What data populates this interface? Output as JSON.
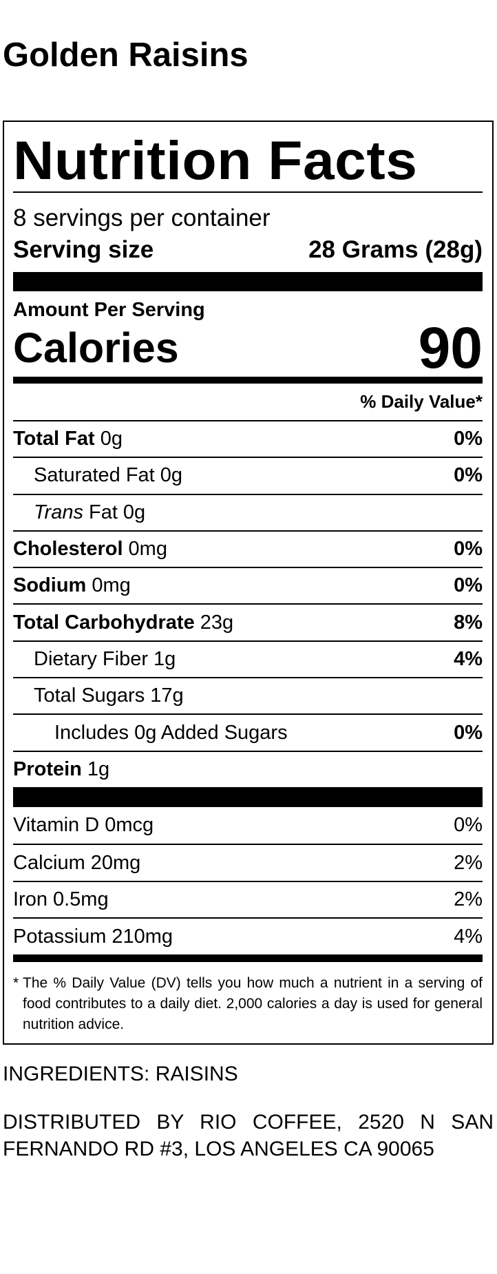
{
  "header": {
    "title": "Golden Raisins"
  },
  "label": {
    "title": "Nutrition Facts",
    "servings": "8 servings per container",
    "serving_size_label": "Serving size",
    "serving_size_value": "28 Grams (28g)",
    "amount_per_serving": "Amount Per Serving",
    "calories_label": "Calories",
    "calories_value": "90",
    "daily_value_header": "% Daily Value*",
    "nutrients": [
      {
        "name": "Total Fat",
        "amount": "0g",
        "dv": "0%",
        "bold": true,
        "indent": 0
      },
      {
        "name": "Saturated Fat",
        "amount": "0g",
        "dv": "0%",
        "bold": false,
        "indent": 1
      },
      {
        "name_italic": "Trans",
        "name": "Fat",
        "amount": "0g",
        "bold": false,
        "indent": 1
      },
      {
        "name": "Cholesterol",
        "amount": "0mg",
        "dv": "0%",
        "bold": true,
        "indent": 0
      },
      {
        "name": "Sodium",
        "amount": "0mg",
        "dv": "0%",
        "bold": true,
        "indent": 0
      },
      {
        "name": "Total Carbohydrate",
        "amount": "23g",
        "dv": "8%",
        "bold": true,
        "indent": 0
      },
      {
        "name": "Dietary Fiber",
        "amount": "1g",
        "dv": "4%",
        "bold": false,
        "indent": 1
      },
      {
        "name": "Total Sugars",
        "amount": "17g",
        "bold": false,
        "indent": 1
      },
      {
        "name": "Includes 0g Added Sugars",
        "dv": "0%",
        "bold": false,
        "indent": 2
      },
      {
        "name": "Protein",
        "amount": "1g",
        "bold": true,
        "indent": 0
      }
    ],
    "vitamins": [
      {
        "name": "Vitamin D",
        "amount": "0mcg",
        "dv": "0%"
      },
      {
        "name": "Calcium",
        "amount": "20mg",
        "dv": "2%"
      },
      {
        "name": "Iron",
        "amount": "0.5mg",
        "dv": "2%"
      },
      {
        "name": "Potassium",
        "amount": "210mg",
        "dv": "4%"
      }
    ],
    "footnote_marker": "*",
    "footnote": "The % Daily Value (DV) tells you how much a nutrient in a serving of food contributes to a daily diet. 2,000 calories a day is used for general nutrition advice."
  },
  "ingredients": "INGREDIENTS: RAISINS",
  "distributor": "DISTRIBUTED BY RIO COFFEE, 2520 N SAN FERNANDO RD #3, LOS ANGELES CA 90065"
}
